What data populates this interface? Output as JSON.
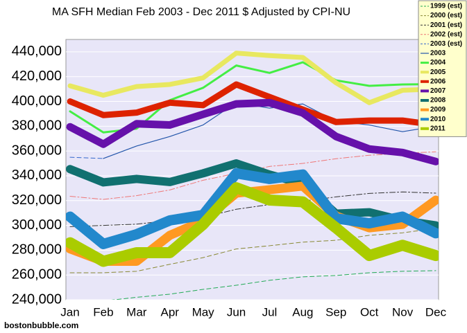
{
  "chart_data": {
    "type": "line",
    "title": "MA SFH Median Feb 2003 - Dec 2011 $ Adjusted by CPI-NU",
    "footer": "bostonbubble.com",
    "categories": [
      "Jan",
      "Feb",
      "Mar",
      "Apr",
      "May",
      "Jun",
      "Jul",
      "Aug",
      "Sep",
      "Oct",
      "Nov",
      "Dec"
    ],
    "ylim": [
      240000,
      450000
    ],
    "yticks": [
      {
        "value": 240000,
        "label": "240,000"
      },
      {
        "value": 260000,
        "label": "260,000"
      },
      {
        "value": 280000,
        "label": "280,000"
      },
      {
        "value": 300000,
        "label": "300,000"
      },
      {
        "value": 320000,
        "label": "320,000"
      },
      {
        "value": 340000,
        "label": "340,000"
      },
      {
        "value": 360000,
        "label": "360,000"
      },
      {
        "value": 380000,
        "label": "380,000"
      },
      {
        "value": 400000,
        "label": "400,000"
      },
      {
        "value": 420000,
        "label": "420,000"
      },
      {
        "value": 440000,
        "label": "440,000"
      }
    ],
    "grid": true,
    "legend": "top-right",
    "series": [
      {
        "name": "1999 (est)",
        "color": "#22aa55",
        "width": 1,
        "dash": "6 4",
        "values": [
          null,
          239000,
          242000,
          244500,
          248400,
          251700,
          255700,
          258500,
          259600,
          261800,
          263000,
          263500
        ]
      },
      {
        "name": "2000 (est)",
        "color": "#888833",
        "width": 1,
        "dash": "6 4",
        "values": [
          261800,
          261800,
          263000,
          268600,
          274000,
          281000,
          283600,
          286500,
          288000,
          292000,
          294000,
          297600
        ]
      },
      {
        "name": "2001 (est)",
        "color": "#333333",
        "width": 1,
        "dash": "8 3 2 3",
        "values": [
          299000,
          300000,
          301000,
          304000,
          306500,
          313000,
          316800,
          319600,
          323000,
          325800,
          327000,
          326000
        ]
      },
      {
        "name": "2002 (est)",
        "color": "#ee7777",
        "width": 1,
        "dash": "8 3 2 3",
        "values": [
          323500,
          321000,
          324000,
          328600,
          336400,
          342000,
          347600,
          350000,
          353800,
          356600,
          358200,
          359400
        ]
      },
      {
        "name": "2003 (est)",
        "color": "#3366cc",
        "width": 1,
        "dash": "6 4",
        "values": [
          355000,
          354000,
          null,
          null,
          null,
          null,
          null,
          null,
          null,
          null,
          null,
          null
        ]
      },
      {
        "name": "2003",
        "color": "#2255aa",
        "width": 1.2,
        "dash": "",
        "values": [
          null,
          354000,
          364000,
          371700,
          381000,
          399000,
          394600,
          398000,
          384000,
          381000,
          375600,
          380000
        ]
      },
      {
        "name": "2004",
        "color": "#44ee44",
        "width": 3,
        "dash": "",
        "values": [
          392000,
          375000,
          378000,
          401000,
          411000,
          429000,
          423000,
          431600,
          417000,
          412600,
          413700,
          414000
        ]
      },
      {
        "name": "2005",
        "color": "#e8e860",
        "width": 7,
        "dash": "",
        "values": [
          412600,
          405000,
          412000,
          413700,
          419000,
          439000,
          437000,
          435500,
          415000,
          399000,
          409000,
          410000
        ]
      },
      {
        "name": "2006",
        "color": "#dd2200",
        "width": 9,
        "dash": "",
        "values": [
          400000,
          389000,
          391000,
          399000,
          397000,
          413700,
          403600,
          393500,
          383400,
          384600,
          384600,
          381000
        ]
      },
      {
        "name": "2007",
        "color": "#6611aa",
        "width": 11,
        "dash": "",
        "values": [
          379500,
          365500,
          382000,
          381000,
          389600,
          398000,
          399000,
          390700,
          371700,
          361600,
          358800,
          351500
        ]
      },
      {
        "name": "2008",
        "color": "#117070",
        "width": 12,
        "dash": "",
        "values": [
          345400,
          334700,
          337500,
          335000,
          342000,
          350000,
          341000,
          333600,
          309500,
          310600,
          304000,
          300000
        ]
      },
      {
        "name": "2009",
        "color": "#ff9922",
        "width": 13,
        "dash": "",
        "values": [
          281000,
          271000,
          271000,
          292000,
          303600,
          326000,
          328800,
          331700,
          307600,
          298000,
          300800,
          320400
        ]
      },
      {
        "name": "2010",
        "color": "#2288cc",
        "width": 15,
        "dash": "",
        "values": [
          307000,
          285000,
          292800,
          304000,
          308400,
          342000,
          337500,
          341000,
          305700,
          301700,
          307000,
          293700
        ]
      },
      {
        "name": "2011",
        "color": "#aacc00",
        "width": 16,
        "dash": "",
        "values": [
          286000,
          271000,
          278000,
          278000,
          300800,
          330400,
          320400,
          319000,
          298000,
          275700,
          284000,
          275700
        ]
      }
    ]
  }
}
